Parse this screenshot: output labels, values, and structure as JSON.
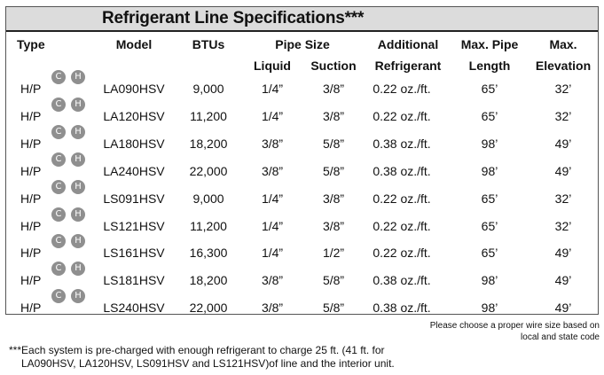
{
  "title": "Refrigerant Line Specifications***",
  "headers": {
    "type": "Type",
    "model": "Model",
    "btus": "BTUs",
    "pipe_size": "Pipe Size",
    "liquid": "Liquid",
    "suction": "Suction",
    "additional_1": "Additional",
    "additional_2": "Refrigerant",
    "max_pipe_1": "Max. Pipe",
    "max_pipe_2": "Length",
    "max_elev_1": "Max.",
    "max_elev_2": "Elevation"
  },
  "badge_labels": {
    "cool": "C",
    "heat": "H"
  },
  "rows": [
    {
      "type": "H/P",
      "model": "LA090HSV",
      "btus": "9,000",
      "liquid": "1/4”",
      "suction": "3/8”",
      "refrigerant": "0.22 oz./ft.",
      "length": "65’",
      "elevation": "32’"
    },
    {
      "type": "H/P",
      "model": "LA120HSV",
      "btus": "11,200",
      "liquid": "1/4”",
      "suction": "3/8”",
      "refrigerant": "0.22 oz./ft.",
      "length": "65’",
      "elevation": "32’"
    },
    {
      "type": "H/P",
      "model": "LA180HSV",
      "btus": "18,200",
      "liquid": "3/8”",
      "suction": "5/8”",
      "refrigerant": "0.38 oz./ft.",
      "length": "98’",
      "elevation": "49’"
    },
    {
      "type": "H/P",
      "model": "LA240HSV",
      "btus": "22,000",
      "liquid": "3/8”",
      "suction": "5/8”",
      "refrigerant": "0.38 oz./ft.",
      "length": "98’",
      "elevation": "49’"
    },
    {
      "type": "H/P",
      "model": "LS091HSV",
      "btus": "9,000",
      "liquid": "1/4”",
      "suction": "3/8”",
      "refrigerant": "0.22 oz./ft.",
      "length": "65’",
      "elevation": "32’"
    },
    {
      "type": "H/P",
      "model": "LS121HSV",
      "btus": "11,200",
      "liquid": "1/4”",
      "suction": "3/8”",
      "refrigerant": "0.22 oz./ft.",
      "length": "65’",
      "elevation": "32’"
    },
    {
      "type": "H/P",
      "model": "LS161HSV",
      "btus": "16,300",
      "liquid": "1/4”",
      "suction": "1/2”",
      "refrigerant": "0.22 oz./ft.",
      "length": "65’",
      "elevation": "49’"
    },
    {
      "type": "H/P",
      "model": "LS181HSV",
      "btus": "18,200",
      "liquid": "3/8”",
      "suction": "5/8”",
      "refrigerant": "0.38 oz./ft.",
      "length": "98’",
      "elevation": "49’"
    },
    {
      "type": "H/P",
      "model": "LS240HSV",
      "btus": "22,000",
      "liquid": "3/8”",
      "suction": "5/8”",
      "refrigerant": "0.38 oz./ft.",
      "length": "98’",
      "elevation": "49’"
    }
  ],
  "wire_note_1": "Please choose a proper wire size based on",
  "wire_note_2": "local and state code",
  "footnote_1": "***Each system is pre-charged with enough refrigerant to charge 25 ft. (41 ft. for",
  "footnote_2": "LA090HSV, LA120HSV, LS091HSV and LS121HSV)of line and the interior unit.",
  "colors": {
    "title_bar": "#dcdcdc",
    "badge": "#8f8f8f",
    "highlight": "#f6d9c8"
  }
}
